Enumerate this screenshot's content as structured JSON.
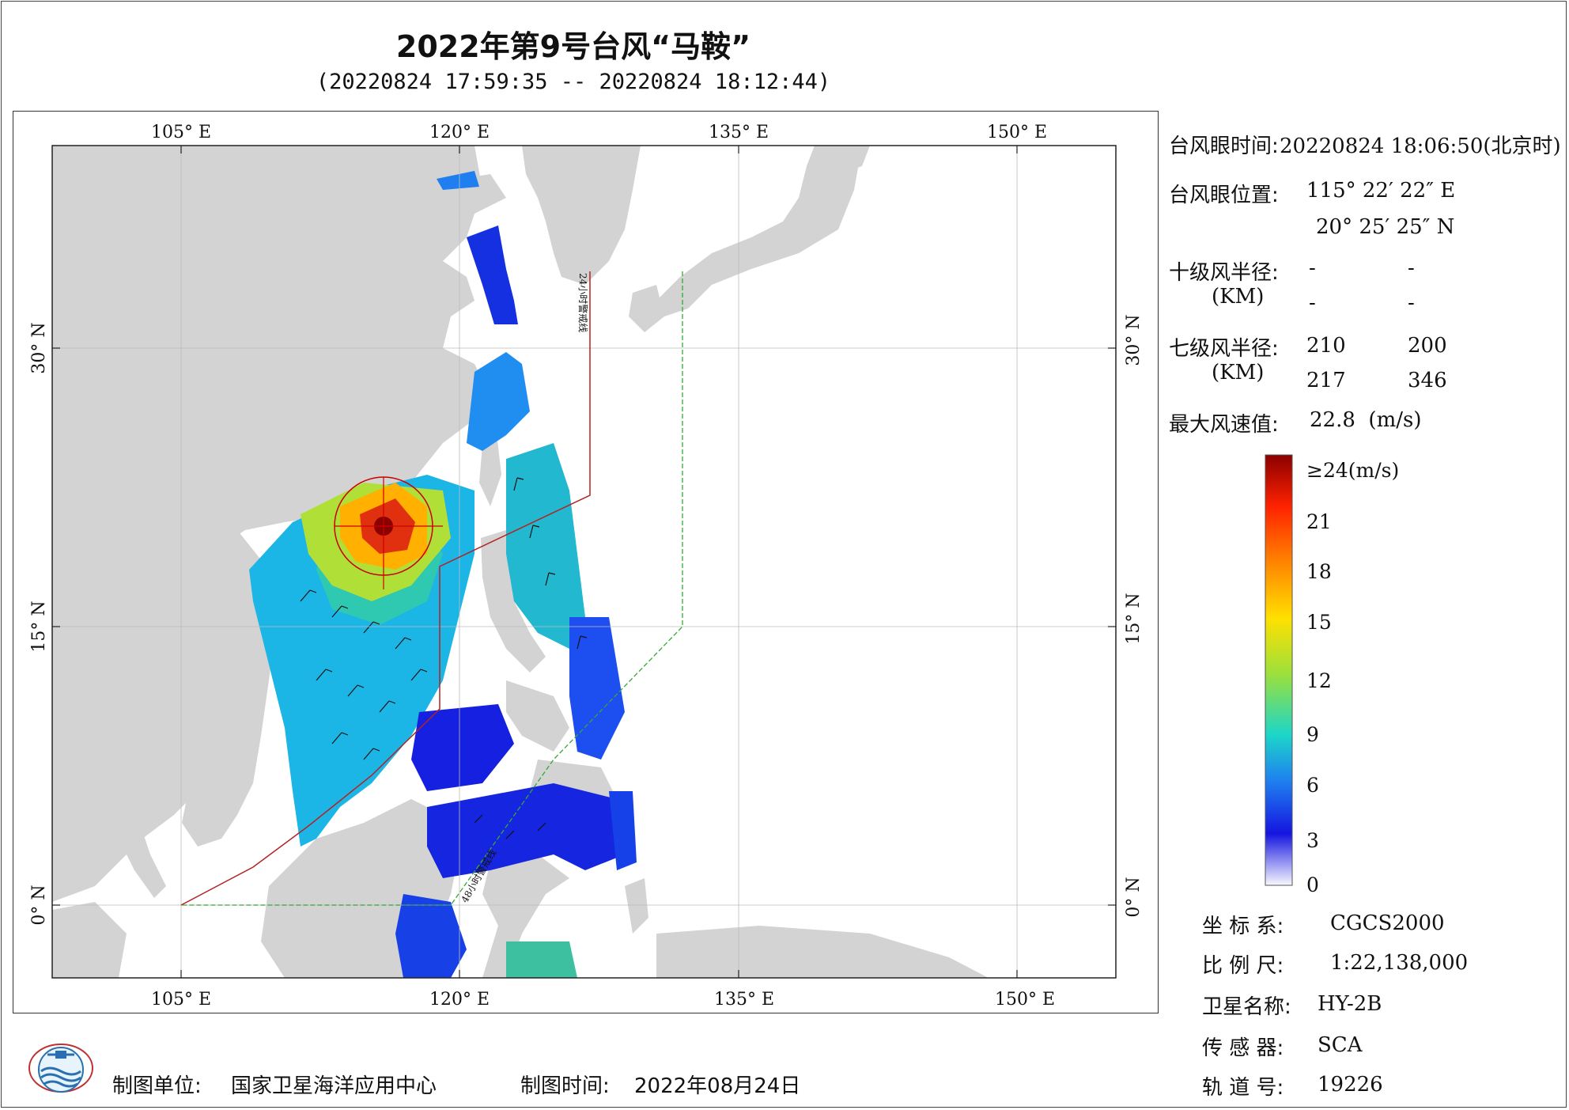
{
  "title": "2022年第9号台风“马鞍”",
  "subtitle": "(20220824 17:59:35 -- 20220824 18:12:44)",
  "map": {
    "top_lon_labels": [
      "105° E",
      "120° E",
      "135° E",
      "150° E"
    ],
    "bottom_lon_labels": [
      "105° E",
      "120° E",
      "135° E",
      "150° E"
    ],
    "left_lat_labels": [
      "30° N",
      "15° N",
      "0° N"
    ],
    "right_lat_labels": [
      "30° N",
      "15° N",
      "0° N"
    ],
    "line_label_24h": "24小时警戒线",
    "line_label_48h": "48小时警戒线",
    "colors": {
      "land": "#d3d3d3",
      "sea": "#ffffff",
      "warning_24h": "#b22222",
      "warning_48h": "#33aa33",
      "center_circle": "#cc0000"
    }
  },
  "info": {
    "eye_time_label": "台风眼时间:",
    "eye_time_value": "20220824 18:06:50(北京时)",
    "eye_pos_label": "台风眼位置:",
    "eye_lon": "115° 22′ 22″ E",
    "eye_lat": "20° 25′ 25″ N",
    "r10_label": "十级风半径:",
    "r10_values": [
      "-",
      "-",
      "-",
      "-"
    ],
    "km_label": "(KM)",
    "r7_label": "七级风半径:",
    "r7_values": [
      "210",
      "200",
      "217",
      "346"
    ],
    "max_wind_label": "最大风速值:",
    "max_wind_value": "22.8  (m/s)"
  },
  "colorbar": {
    "labels": [
      "≥24(m/s)",
      "21",
      "18",
      "15",
      "12",
      "9",
      "6",
      "3",
      "0"
    ],
    "stops": [
      "#8b0000",
      "#ff2200",
      "#ff8c00",
      "#ffe000",
      "#9be03c",
      "#1cd6c8",
      "#1f7ef0",
      "#1515e0",
      "#f8f8ff"
    ]
  },
  "meta": {
    "crs_label": "坐 标 系:",
    "crs_value": "CGCS2000",
    "scale_label": "比 例 尺:",
    "scale_value": "1:22,138,000",
    "sat_label": "卫星名称:",
    "sat_value": "HY-2B",
    "sensor_label": "传 感 器:",
    "sensor_value": "SCA",
    "orbit_label": "轨 道 号:",
    "orbit_value": "19226"
  },
  "footer": {
    "unit_label": "制图单位:",
    "unit_value": "国家卫星海洋应用中心",
    "time_label": "制图时间:",
    "time_value": "2022年08月24日"
  }
}
